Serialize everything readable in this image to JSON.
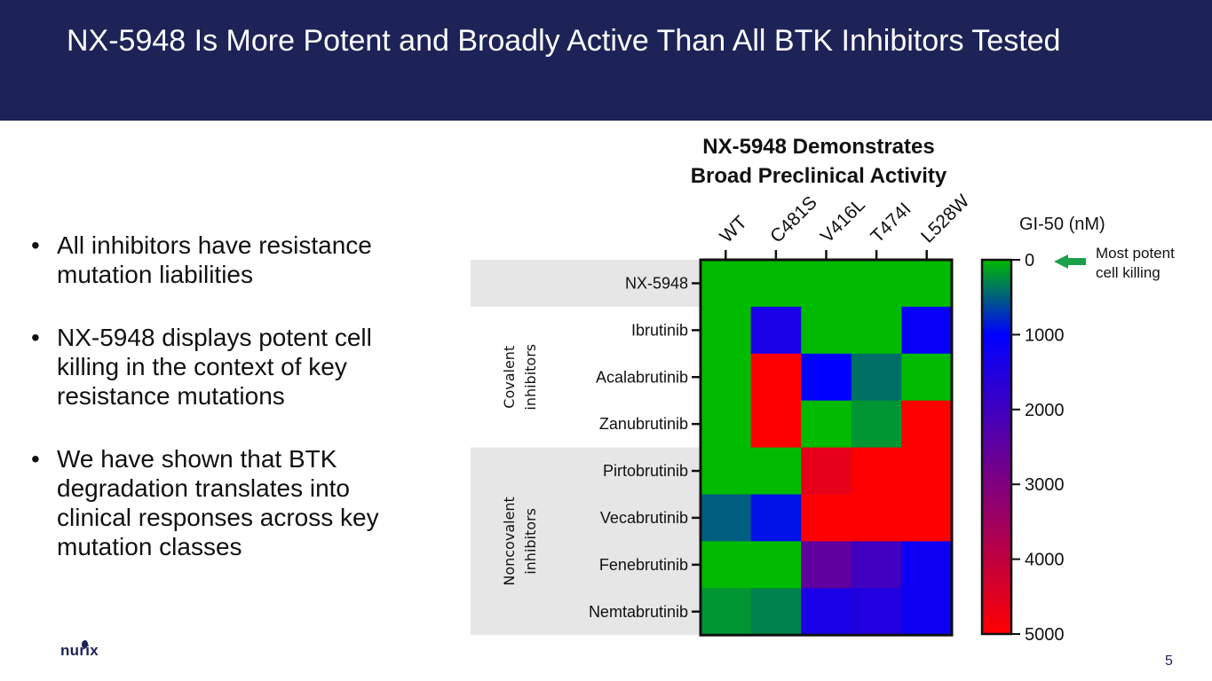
{
  "slide": {
    "title": "NX-5948 Is More Potent and Broadly Active Than All BTK Inhibitors Tested",
    "bullets": [
      "All inhibitors have resistance mutation liabilities",
      "NX-5948 displays potent cell killing in the context of key resistance mutations",
      "We have shown that BTK degradation translates into clinical responses across key mutation classes"
    ],
    "bullet_glyph": "•",
    "logo_text": "nurix",
    "page_number": "5"
  },
  "chart_data": {
    "type": "heatmap",
    "title_lines": [
      "NX-5948 Demonstrates",
      "Broad Preclinical Activity"
    ],
    "columns": [
      "WT",
      "C481S",
      "V416L",
      "T474I",
      "L528W"
    ],
    "rows": [
      "NX-5948",
      "Ibrutinib",
      "Acalabrutinib",
      "Zanubrutinib",
      "Pirtobrutinib",
      "Vecabrutinib",
      "Fenebrutinib",
      "Nemtabrutinib"
    ],
    "groups": [
      {
        "label_lines": [
          "Covalent",
          "inhibitors"
        ],
        "rows": [
          "Ibrutinib",
          "Acalabrutinib",
          "Zanubrutinib"
        ]
      },
      {
        "label_lines": [
          "Noncovalent",
          "inhibitors"
        ],
        "rows": [
          "Pirtobrutinib",
          "Vecabrutinib",
          "Fenebrutinib",
          "Nemtabrutinib"
        ]
      }
    ],
    "values": [
      [
        0,
        0,
        0,
        0,
        0
      ],
      [
        0,
        1400,
        0,
        0,
        1100
      ],
      [
        0,
        5000,
        1000,
        400,
        0
      ],
      [
        0,
        5000,
        0,
        200,
        5000
      ],
      [
        0,
        0,
        4600,
        5000,
        5000
      ],
      [
        500,
        900,
        5000,
        5000,
        5000
      ],
      [
        0,
        0,
        2500,
        2000,
        1200
      ],
      [
        200,
        300,
        1400,
        1500,
        1200
      ]
    ],
    "colorbar": {
      "label": "GI-50 (nM)",
      "range": [
        0,
        5000
      ],
      "ticks": [
        0,
        1000,
        2000,
        3000,
        4000,
        5000
      ],
      "colors": {
        "0": "#00bb00",
        "1000": "#0000ff",
        "5000": "#ff0000"
      }
    },
    "annotation": {
      "lines": [
        "Most potent",
        "cell killing"
      ],
      "arrow_color": "#1aa14a",
      "points_to": 0
    }
  }
}
